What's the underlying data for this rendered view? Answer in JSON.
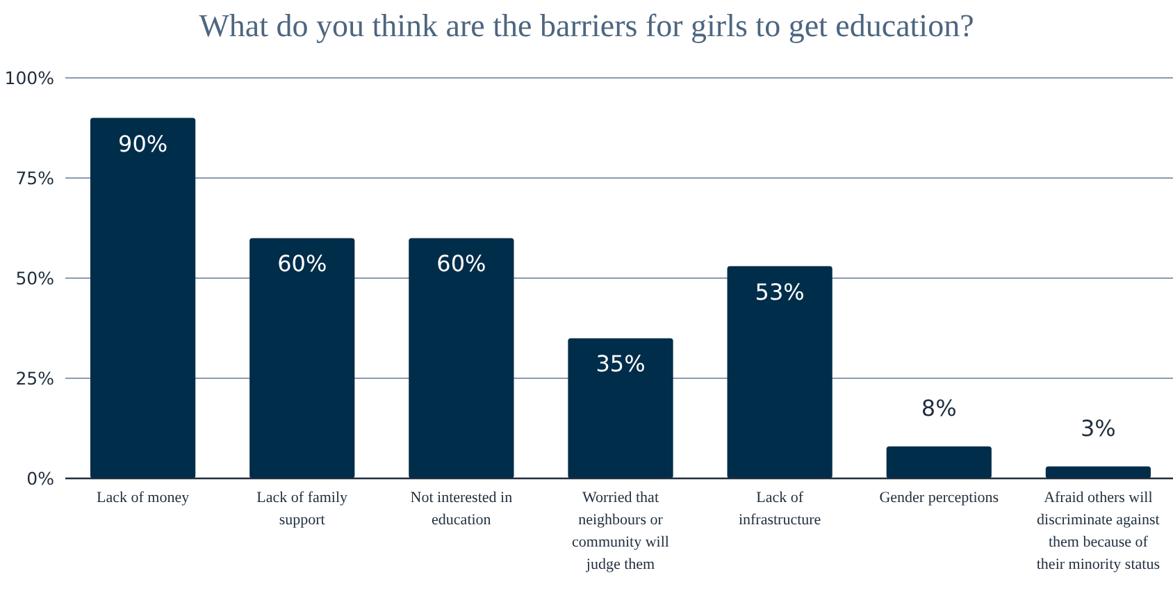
{
  "chart_data": {
    "type": "bar",
    "title": "What do you think are the barriers for girls to get education?",
    "categories": [
      "Lack of money",
      "Lack of family support",
      "Not interested in education",
      "Worried that neighbours or community will judge them",
      "Lack of infrastructure",
      "Gender perceptions",
      "Afraid others will discriminate against them because of their minority status"
    ],
    "values": [
      90,
      60,
      60,
      35,
      53,
      8,
      3
    ],
    "color": "#002d4a",
    "ylim": [
      0,
      100
    ],
    "yticks": [
      {
        "value": 0,
        "label": "0%"
      },
      {
        "value": 25,
        "label": "25%"
      },
      {
        "value": 50,
        "label": "50%"
      },
      {
        "value": 75,
        "label": "75%"
      },
      {
        "value": 100,
        "label": "100%"
      }
    ],
    "value_labels": [
      "90%",
      "60%",
      "60%",
      "35%",
      "53%",
      "8%",
      "3%"
    ],
    "grid": "y"
  }
}
